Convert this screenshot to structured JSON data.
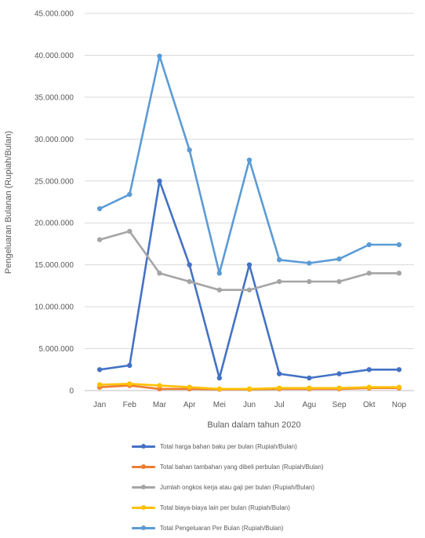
{
  "chart_data": {
    "type": "line",
    "xlabel": "Bulan dalam tahun 2020",
    "ylabel": "Pengeluaran Bulanan (Rupiah/Bulan)",
    "ylim": [
      0,
      45000000
    ],
    "yticks": [
      0,
      5000000,
      10000000,
      15000000,
      20000000,
      25000000,
      30000000,
      35000000,
      40000000,
      45000000
    ],
    "ytick_labels": [
      "0",
      "5.000.000",
      "10.000.000",
      "15.000.000",
      "20.000.000",
      "25.000.000",
      "30.000.000",
      "35.000.000",
      "40.000.000",
      "45.000.000"
    ],
    "categories": [
      "Jan",
      "Feb",
      "Mar",
      "Apr",
      "Mei",
      "Jun",
      "Jul",
      "Agu",
      "Sep",
      "Okt",
      "Nop"
    ],
    "grid": "horizontal",
    "legend_position": "bottom",
    "series": [
      {
        "name": "Total harga bahan baku per bulan (Rupiah/Bulan)",
        "color": "#4472C4",
        "values": [
          2500000,
          3000000,
          25000000,
          15000000,
          1500000,
          15000000,
          2000000,
          1500000,
          2000000,
          2500000,
          2500000
        ]
      },
      {
        "name": "Total bahan tambahan yang dibeli perbulan (Rupiah/Bulan)",
        "color": "#ED7D31",
        "values": [
          400000,
          600000,
          200000,
          200000,
          150000,
          150000,
          200000,
          200000,
          200000,
          300000,
          300000
        ]
      },
      {
        "name": "Jumlah ongkos kerja atau gaji per bulan (Rupiah/Bulan)",
        "color": "#A5A5A5",
        "values": [
          18000000,
          19000000,
          14000000,
          13000000,
          12000000,
          12000000,
          13000000,
          13000000,
          13000000,
          14000000,
          14000000
        ]
      },
      {
        "name": "Total biaya-biaya lain per bulan (Rupiah/Bulan)",
        "color": "#FFC000",
        "values": [
          700000,
          800000,
          600000,
          400000,
          200000,
          200000,
          300000,
          300000,
          300000,
          400000,
          400000
        ]
      },
      {
        "name": "Total Pengeluaran Per Bulan (Rupiah/Bulan)",
        "color": "#5B9BD5",
        "values": [
          21700000,
          23400000,
          39900000,
          28700000,
          14000000,
          27500000,
          15600000,
          15200000,
          15700000,
          17400000,
          17400000
        ]
      }
    ]
  }
}
